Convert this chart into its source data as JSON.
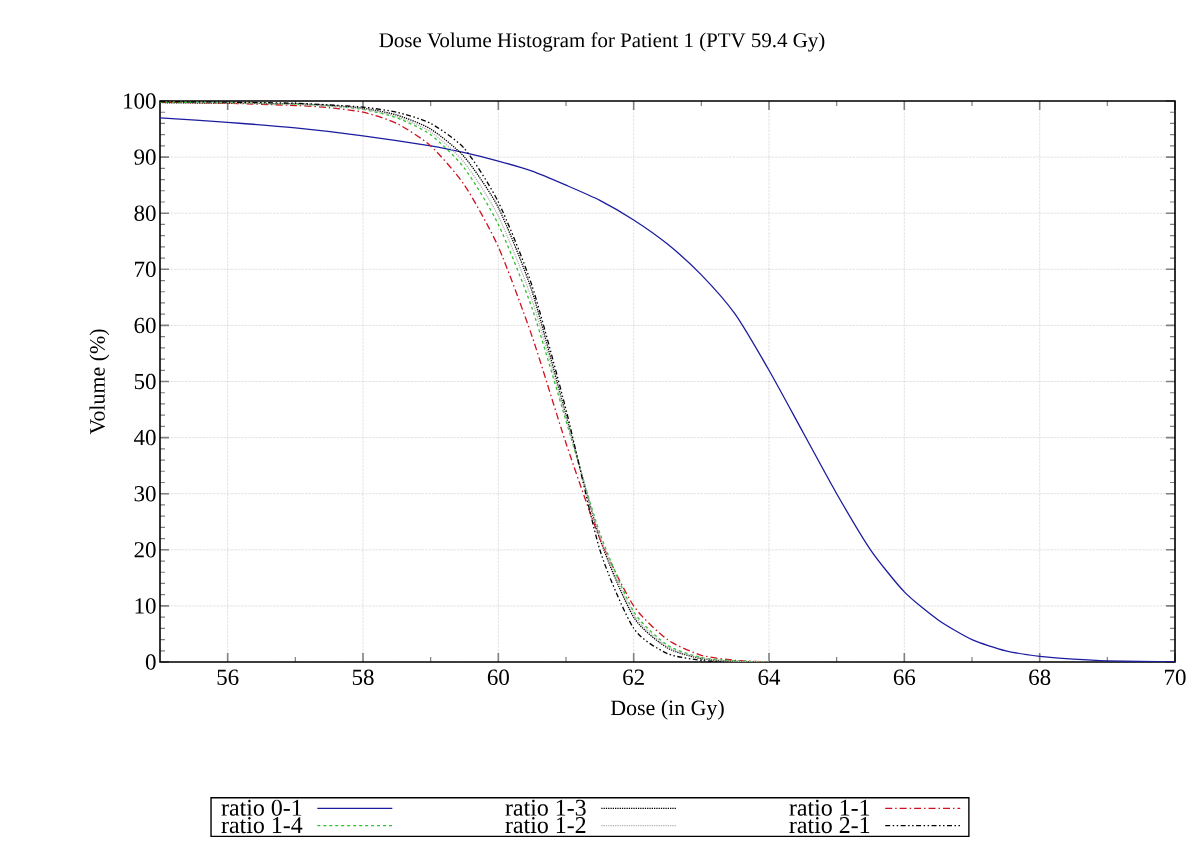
{
  "chart_data": {
    "type": "line",
    "title": "Dose Volume Histogram for Patient 1 (PTV 59.4 Gy)",
    "xlabel": "Dose (in Gy)",
    "ylabel": "Volume (%)",
    "x": [
      55,
      56,
      57,
      57.5,
      58,
      58.5,
      59,
      59.5,
      60,
      60.5,
      61,
      61.5,
      62,
      62.5,
      63,
      63.5,
      64
    ],
    "series": [
      {
        "name": "ratio 0-1",
        "color": "#1c1ca0",
        "line_style": "solid",
        "x": [
          55,
          56,
          57,
          58,
          59,
          59.5,
          60,
          60.5,
          61,
          61.5,
          62,
          62.5,
          63,
          63.5,
          64,
          64.5,
          65,
          65.5,
          66,
          66.5,
          67,
          67.5,
          68,
          68.5,
          69,
          70
        ],
        "values": [
          97,
          96.2,
          95.2,
          93.8,
          92,
          90.8,
          89.3,
          87.5,
          85,
          82.3,
          78.8,
          74.5,
          69,
          62,
          52,
          41,
          30,
          20,
          12.5,
          7.5,
          4,
          2,
          1,
          0.5,
          0.2,
          0
        ]
      },
      {
        "name": "ratio 1-3",
        "color": "#000000",
        "line_style": "dotted",
        "x": [
          55,
          56,
          57,
          57.5,
          58,
          58.5,
          59,
          59.5,
          60,
          60.5,
          61,
          61.5,
          62,
          62.5,
          63,
          63.5
        ],
        "values": [
          99.7,
          99.6,
          99.5,
          99.2,
          98.7,
          97.5,
          95,
          90,
          81,
          66,
          44,
          22,
          8,
          2.5,
          0.6,
          0.1
        ]
      },
      {
        "name": "ratio 1-1",
        "color": "#d01020",
        "line_style": "dashdot",
        "values": [
          99.8,
          99.6,
          99.2,
          98.8,
          98,
          96,
          92,
          85,
          74,
          58,
          39,
          22,
          10,
          4,
          1.2,
          0.3,
          0
        ]
      },
      {
        "name": "ratio 1-4",
        "color": "#30c030",
        "line_style": "dashed",
        "values": [
          99.8,
          99.7,
          99.4,
          99.1,
          98.5,
          97,
          94,
          88,
          78,
          63,
          43,
          23,
          9,
          3,
          0.8,
          0.2,
          0
        ]
      },
      {
        "name": "ratio 1-2",
        "color": "#b4b4b4",
        "line_style": "dotted",
        "x": [
          55.5,
          56,
          57,
          57.5,
          58,
          58.5,
          59,
          59.5,
          60,
          60.5,
          61,
          61.5,
          62,
          62.5,
          63,
          63.5,
          64
        ],
        "values": [
          99.7,
          99.7,
          99.4,
          99.1,
          98.6,
          97.2,
          94.5,
          89,
          79.5,
          64.5,
          43.5,
          22.5,
          8.5,
          2.7,
          0.7,
          0.1,
          0
        ]
      },
      {
        "name": "ratio 2-1",
        "color": "#000000",
        "line_style": "dashdotdot",
        "x": [
          55,
          56,
          57,
          57.5,
          58,
          58.5,
          59,
          59.5,
          60,
          60.5,
          61,
          61.5,
          62,
          62.5,
          63,
          63.3
        ],
        "values": [
          99.9,
          99.8,
          99.6,
          99.3,
          98.9,
          98,
          96,
          91.5,
          82,
          67,
          45,
          20,
          6,
          1.5,
          0.3,
          0
        ]
      }
    ],
    "xlim": [
      55,
      70
    ],
    "xticks": [
      56,
      58,
      60,
      62,
      64,
      66,
      68,
      70
    ],
    "ylim": [
      0,
      100
    ],
    "yticks": [
      0,
      10,
      20,
      30,
      40,
      50,
      60,
      70,
      80,
      90,
      100
    ],
    "grid": true,
    "legend": "bottom"
  }
}
